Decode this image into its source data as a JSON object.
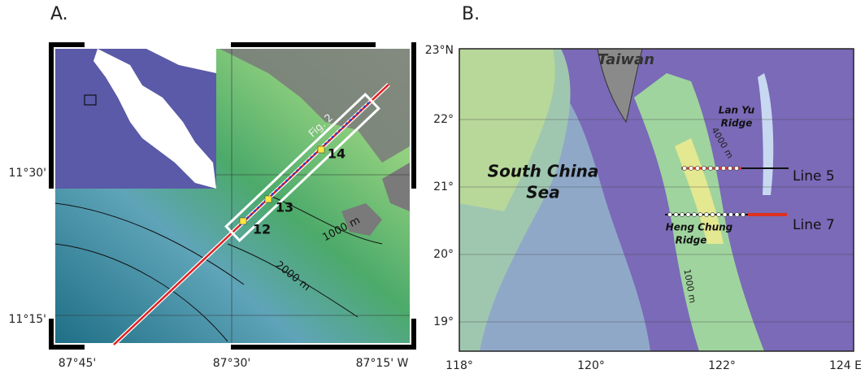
{
  "panel_a": {
    "label": "A.",
    "lat_labels": [
      "11°30'",
      "11°15'"
    ],
    "lon_labels": [
      "87°45'",
      "87°30'",
      "87°15' W"
    ],
    "box_label": "Fig. 2",
    "site_labels": [
      "14",
      "13",
      "12"
    ],
    "contour_labels": [
      "1000 m",
      "2000 m"
    ]
  },
  "panel_b": {
    "label": "B.",
    "lat_labels": [
      "23°N",
      "22°",
      "21°",
      "20°",
      "19°"
    ],
    "lon_labels": [
      "118°",
      "120°",
      "122°",
      "124 E"
    ],
    "place_labels": [
      "Taiwan",
      "South China",
      "Sea",
      "Lan Yu",
      "Ridge",
      "Heng Chung",
      "Ridge"
    ],
    "contour_labels": [
      "4000 m",
      "1000 m"
    ],
    "line_labels": [
      "Line 5",
      "Line 7"
    ]
  }
}
